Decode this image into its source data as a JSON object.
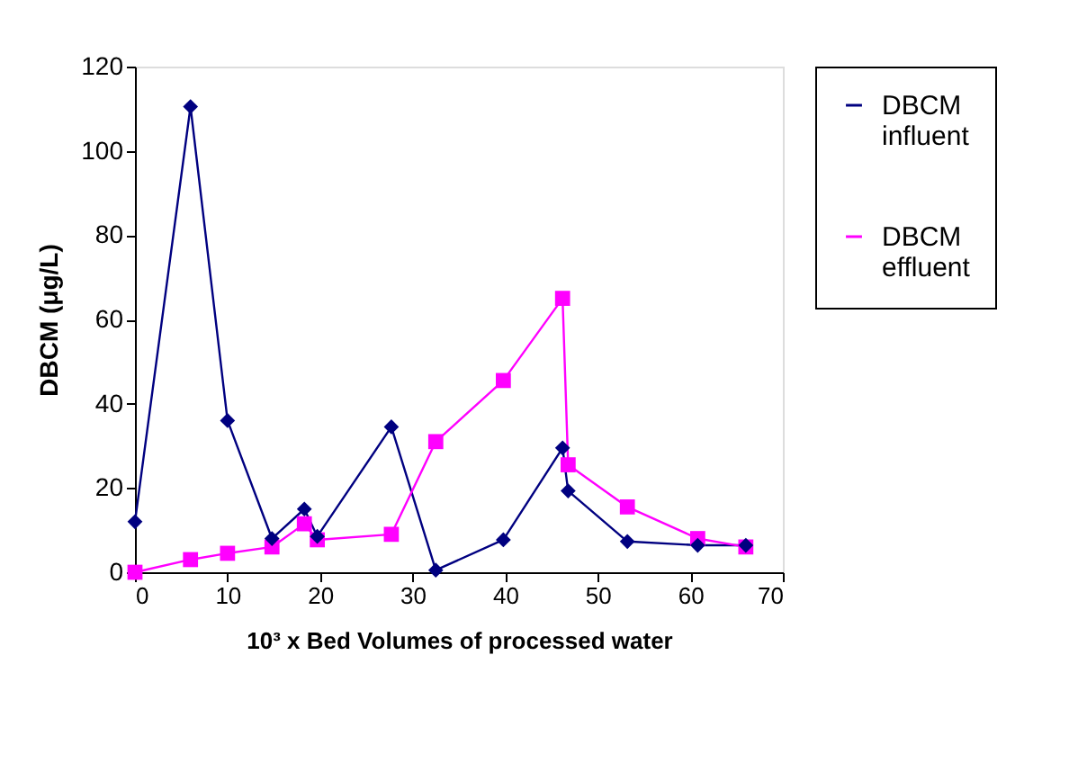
{
  "chart_data": {
    "type": "line",
    "xlabel": "10³ x Bed Volumes of processed water",
    "ylabel": "DBCM (μg/L)",
    "xlim": [
      0,
      70
    ],
    "xticks": [
      0,
      10,
      20,
      30,
      40,
      50,
      60,
      70
    ],
    "ylim": [
      0,
      120
    ],
    "yticks": [
      0,
      20,
      40,
      60,
      80,
      100,
      120
    ],
    "grid": false,
    "legend": "right",
    "line_style": "solid",
    "series": [
      {
        "name": "DBCM influent",
        "color": "#000080",
        "marker": "diamond",
        "x": [
          0,
          6,
          10,
          14.8,
          18.3,
          19.7,
          27.7,
          32.5,
          39.8,
          46.2,
          46.8,
          53.2,
          60.8,
          66
        ],
        "values": [
          12,
          110.5,
          36,
          8,
          15,
          8.5,
          34.5,
          0.5,
          7.7,
          29.5,
          19.3,
          7.3,
          6.4,
          6.4
        ]
      },
      {
        "name": "DBCM effluent",
        "color": "#ff00ff",
        "marker": "square",
        "x": [
          0,
          6,
          10,
          14.8,
          18.3,
          19.7,
          27.7,
          32.5,
          39.8,
          46.2,
          46.8,
          53.2,
          60.8,
          66
        ],
        "values": [
          0,
          3,
          4.5,
          6,
          11.5,
          7.7,
          9,
          31,
          45.5,
          65,
          25.5,
          15.5,
          8,
          6
        ]
      }
    ]
  }
}
